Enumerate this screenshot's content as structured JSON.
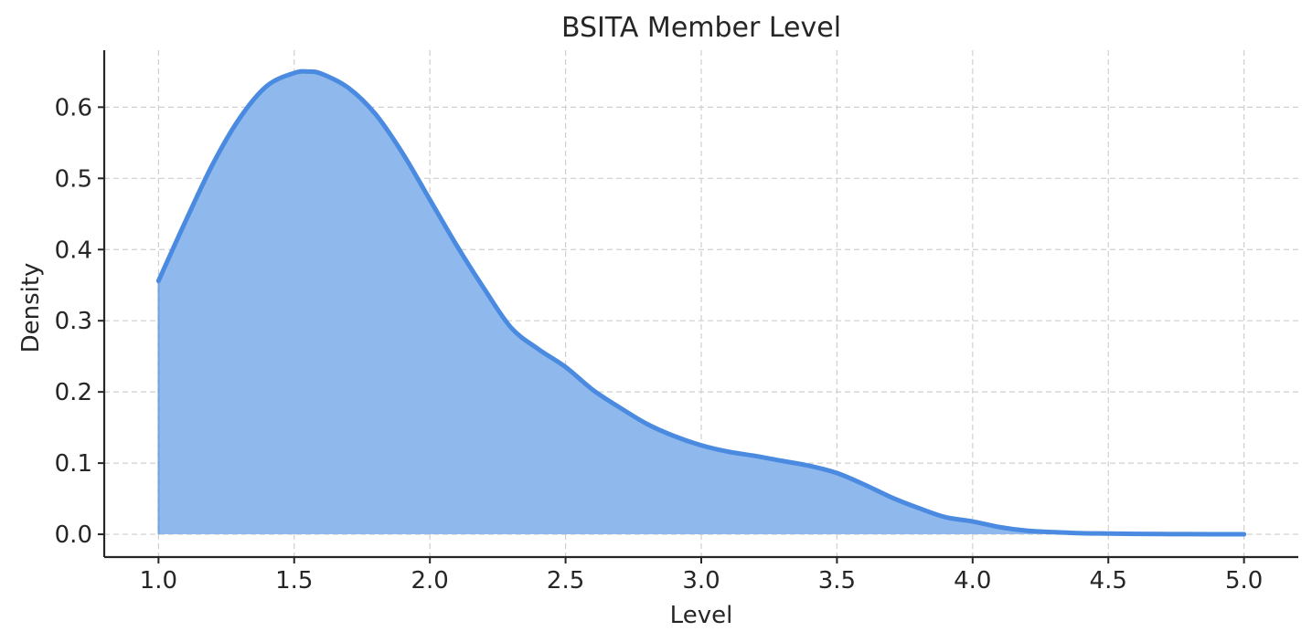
{
  "chart_data": {
    "type": "area",
    "title": "BSITA Member Level",
    "xlabel": "Level",
    "ylabel": "Density",
    "xlim": [
      0.8,
      5.2
    ],
    "ylim": [
      -0.032,
      0.68
    ],
    "xticks": [
      1.0,
      1.5,
      2.0,
      2.5,
      3.0,
      3.5,
      4.0,
      4.5,
      5.0
    ],
    "xtick_labels": [
      "1.0",
      "1.5",
      "2.0",
      "2.5",
      "3.0",
      "3.5",
      "4.0",
      "4.5",
      "5.0"
    ],
    "yticks": [
      0.0,
      0.1,
      0.2,
      0.3,
      0.4,
      0.5,
      0.6
    ],
    "ytick_labels": [
      "0.0",
      "0.1",
      "0.2",
      "0.3",
      "0.4",
      "0.5",
      "0.6"
    ],
    "grid": true,
    "line_color": "#4a8ae0",
    "fill_color": "#8fb9ec",
    "x": [
      1.0,
      1.1,
      1.2,
      1.3,
      1.4,
      1.5,
      1.55,
      1.6,
      1.7,
      1.8,
      1.9,
      2.0,
      2.1,
      2.2,
      2.3,
      2.4,
      2.5,
      2.6,
      2.7,
      2.8,
      2.9,
      3.0,
      3.1,
      3.2,
      3.3,
      3.4,
      3.5,
      3.6,
      3.7,
      3.8,
      3.9,
      4.0,
      4.1,
      4.2,
      4.3,
      4.4,
      4.5,
      4.6,
      4.8,
      5.0
    ],
    "y": [
      0.356,
      0.44,
      0.52,
      0.585,
      0.63,
      0.648,
      0.65,
      0.647,
      0.627,
      0.59,
      0.535,
      0.47,
      0.405,
      0.345,
      0.29,
      0.26,
      0.235,
      0.203,
      0.178,
      0.155,
      0.138,
      0.125,
      0.116,
      0.11,
      0.103,
      0.096,
      0.086,
      0.07,
      0.052,
      0.037,
      0.024,
      0.018,
      0.01,
      0.005,
      0.003,
      0.0015,
      0.001,
      0.0005,
      0.0002,
      0.0
    ]
  }
}
